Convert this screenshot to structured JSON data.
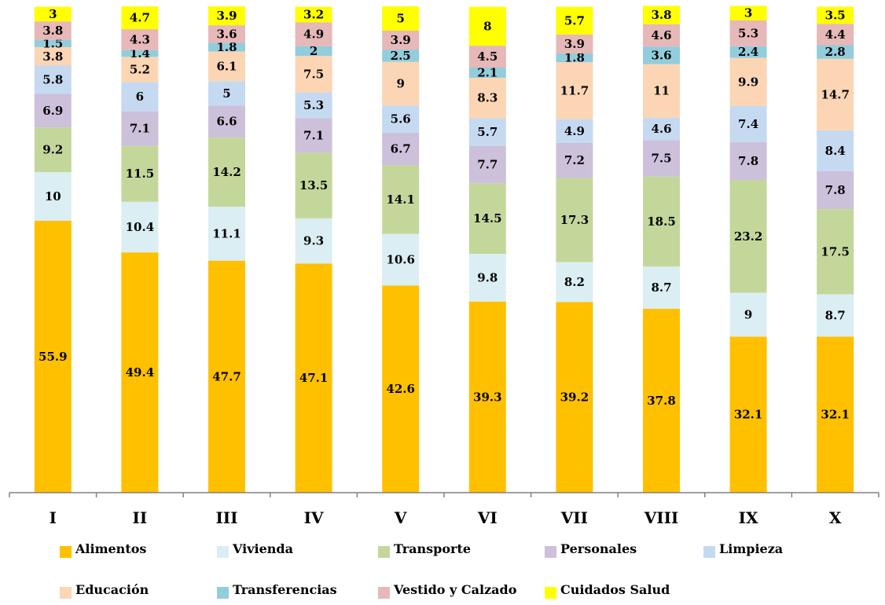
{
  "chart_data": {
    "type": "bar",
    "stacked": true,
    "categories": [
      "I",
      "II",
      "III",
      "IV",
      "V",
      "VI",
      "VII",
      "VIII",
      "IX",
      "X"
    ],
    "series": [
      {
        "name": "Alimentos",
        "color": "#FFC000",
        "values": [
          55.9,
          49.4,
          47.7,
          47.1,
          42.6,
          39.3,
          39.2,
          37.8,
          32.1,
          32.1
        ]
      },
      {
        "name": "Vivienda",
        "color": "#DAEEF3",
        "values": [
          10,
          10.4,
          11.1,
          9.3,
          10.6,
          9.8,
          8.2,
          8.7,
          9,
          8.7
        ]
      },
      {
        "name": "Transporte",
        "color": "#C4D79B",
        "values": [
          9.2,
          11.5,
          14.2,
          13.5,
          14.1,
          14.5,
          17.3,
          18.5,
          23.2,
          17.5
        ]
      },
      {
        "name": "Personales",
        "color": "#CCC0DA",
        "values": [
          6.9,
          7.1,
          6.6,
          7.1,
          6.7,
          7.7,
          7.2,
          7.5,
          7.8,
          7.8
        ]
      },
      {
        "name": "Limpieza",
        "color": "#C5D9F1",
        "values": [
          5.8,
          6,
          5,
          5.3,
          5.6,
          5.7,
          4.9,
          4.6,
          7.4,
          8.4
        ]
      },
      {
        "name": "Educación",
        "color": "#FCD5B4",
        "values": [
          3.8,
          5.2,
          6.1,
          7.5,
          9,
          8.3,
          11.7,
          11,
          9.9,
          14.7
        ]
      },
      {
        "name": "Transferencias",
        "color": "#92CDDC",
        "values": [
          1.5,
          1.4,
          1.8,
          2,
          2.5,
          2.1,
          1.8,
          3.6,
          2.4,
          2.8
        ]
      },
      {
        "name": "Vestido y Calzado",
        "color": "#E6B8B7",
        "values": [
          3.8,
          4.3,
          3.6,
          4.9,
          3.9,
          4.5,
          3.9,
          4.6,
          5.3,
          4.4
        ]
      },
      {
        "name": "Cuidados Salud",
        "color": "#FFFF00",
        "values": [
          3,
          4.7,
          3.9,
          3.2,
          5,
          8,
          5.7,
          3.8,
          3,
          3.5
        ]
      }
    ],
    "ylim": [
      0,
      100
    ],
    "grid": false,
    "legend": "bottom"
  }
}
